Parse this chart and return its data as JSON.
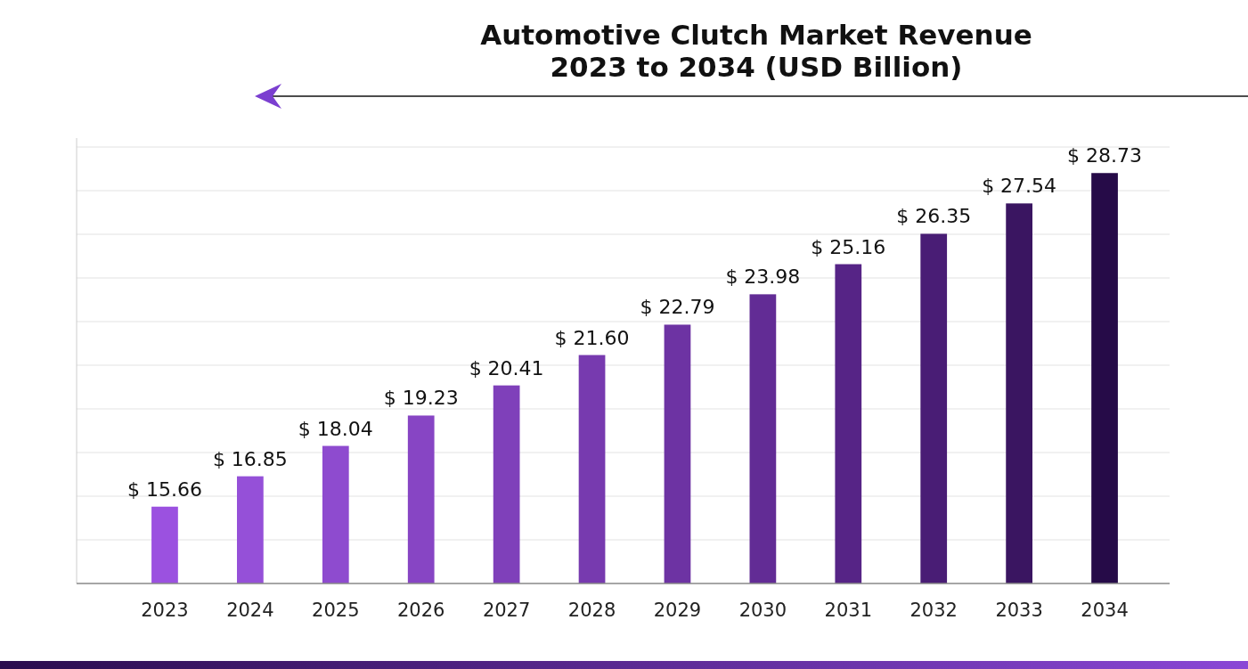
{
  "chart_data": {
    "type": "bar",
    "title": "Automotive Clutch Market Revenue\n2023 to 2034 (USD Billion)",
    "categories": [
      "2023",
      "2024",
      "2025",
      "2026",
      "2027",
      "2028",
      "2029",
      "2030",
      "2031",
      "2032",
      "2033",
      "2034"
    ],
    "values": [
      15.66,
      16.85,
      18.04,
      19.23,
      20.41,
      21.6,
      22.79,
      23.98,
      25.16,
      26.35,
      27.54,
      28.73
    ],
    "value_labels": [
      "$ 15.66",
      "$ 16.85",
      "$ 18.04",
      "$ 19.23",
      "$ 20.41",
      "$ 21.60",
      "$ 22.79",
      "$ 23.98",
      "$ 25.16",
      "$ 26.35",
      "$ 27.54",
      "$ 28.73"
    ],
    "colors": [
      "#9b51e0",
      "#9550d8",
      "#8e4bcf",
      "#8745c4",
      "#7f40ba",
      "#773aaf",
      "#6d33a3",
      "#622c95",
      "#562486",
      "#491d75",
      "#3a1561",
      "#260b48"
    ],
    "ylim": [
      12.65,
      30.1
    ],
    "yticks": [
      {
        "value": 14.36,
        "label": null
      },
      {
        "value": 16.07,
        "label": null
      },
      {
        "value": 17.78,
        "label": null
      },
      {
        "value": 19.49,
        "label": null
      },
      {
        "value": 21.2,
        "label": null
      },
      {
        "value": 22.91,
        "label": null
      },
      {
        "value": 24.62,
        "label": null
      },
      {
        "value": 26.33,
        "label": null
      },
      {
        "value": 28.04,
        "label": null
      },
      {
        "value": 29.75,
        "label": null
      }
    ],
    "grid": "y",
    "tick_labels": "x"
  }
}
